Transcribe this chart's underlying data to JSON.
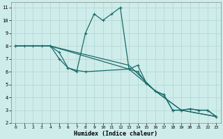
{
  "xlabel": "Humidex (Indice chaleur)",
  "bg_color": "#ceecea",
  "grid_color": "#b8dbd8",
  "line_color": "#1a6b6b",
  "xlim": [
    -0.5,
    23.5
  ],
  "ylim": [
    2,
    11.4
  ],
  "xticks": [
    0,
    1,
    2,
    3,
    4,
    5,
    6,
    7,
    8,
    9,
    10,
    11,
    12,
    13,
    14,
    15,
    16,
    17,
    18,
    19,
    20,
    21,
    22,
    23
  ],
  "yticks": [
    2,
    3,
    4,
    5,
    6,
    7,
    8,
    9,
    10,
    11
  ],
  "series1_x": [
    0,
    1,
    2,
    3,
    4,
    5,
    6,
    7,
    8,
    9,
    10,
    11,
    12,
    13,
    14,
    15,
    16,
    17,
    18,
    19,
    20,
    21,
    22,
    23
  ],
  "series1_y": [
    8,
    8,
    8,
    8,
    8,
    7,
    6.3,
    6,
    9,
    10.5,
    10,
    10.5,
    11,
    6.2,
    6.5,
    5.1,
    4.5,
    4.2,
    3,
    3,
    3.1,
    3,
    3,
    2.5
  ],
  "series2_x": [
    0,
    4,
    5,
    6,
    7,
    8,
    13,
    14,
    15,
    16,
    17,
    18,
    19,
    20,
    21,
    22,
    23
  ],
  "series2_y": [
    8,
    8,
    7.5,
    6.3,
    6.1,
    6.0,
    6.2,
    6.0,
    5.1,
    4.5,
    4.2,
    3,
    3,
    3.1,
    3,
    3,
    2.5
  ],
  "series3_x": [
    0,
    4,
    13,
    16,
    19,
    23
  ],
  "series3_y": [
    8,
    8,
    6.2,
    4.5,
    3,
    2.5
  ],
  "series4_x": [
    0,
    4,
    13,
    16,
    19,
    23
  ],
  "series4_y": [
    8,
    8,
    6.5,
    4.5,
    3,
    2.5
  ]
}
